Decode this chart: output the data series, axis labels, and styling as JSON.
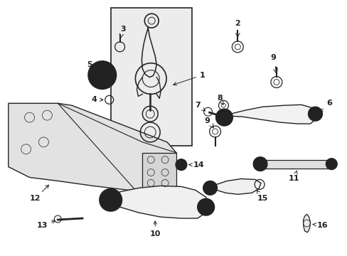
{
  "background_color": "#ffffff",
  "line_color": "#222222",
  "fill_color": "#e8e8e8",
  "figsize": [
    4.89,
    3.6
  ],
  "dpi": 100
}
